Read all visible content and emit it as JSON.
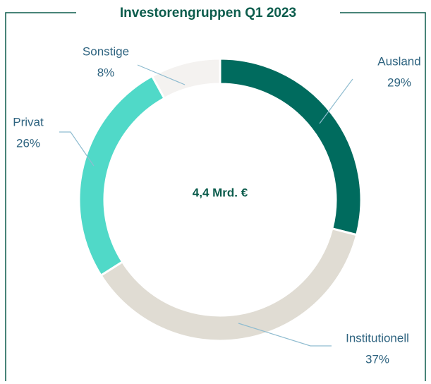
{
  "chart_data": {
    "type": "pie",
    "title": "Investorengruppen Q1 2023",
    "center_label": "4,4 Mrd. €",
    "categories": [
      "Ausland",
      "Institutionell",
      "Privat",
      "Sonstige"
    ],
    "values": [
      29,
      37,
      26,
      8
    ],
    "value_labels": [
      "29%",
      "37%",
      "26%",
      "8%"
    ],
    "colors": [
      "#006b5e",
      "#e0dcd3",
      "#50d9c8",
      "#f4f2f0"
    ]
  }
}
